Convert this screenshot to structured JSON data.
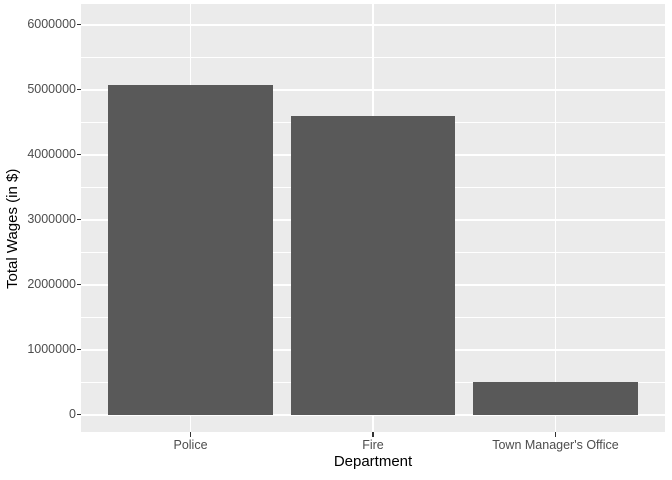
{
  "chart_data": {
    "type": "bar",
    "categories": [
      "Police",
      "Fire",
      "Town Manager's Office"
    ],
    "values": [
      5070000,
      4590000,
      500000
    ],
    "xlabel": "Department",
    "ylabel": "Total Wages (in $)",
    "ylim": [
      0,
      6000000
    ],
    "yticks": [
      0,
      1000000,
      2000000,
      3000000,
      4000000,
      5000000,
      6000000
    ],
    "ytick_labels": [
      "0",
      "1000000",
      "2000000",
      "3000000",
      "4000000",
      "5000000",
      "6000000"
    ],
    "y_minor_ticks": [
      500000,
      1500000,
      2500000,
      3500000,
      4500000,
      5500000
    ],
    "grid": true,
    "legend_position": "none",
    "colors": {
      "bar_fill": "#595959",
      "panel_background": "#EBEBEB",
      "gridline": "#FFFFFF",
      "tick_label": "#4D4D4D",
      "axis_title": "#000000",
      "tick_mark": "#333333",
      "figure_background": "#FFFFFF"
    }
  }
}
